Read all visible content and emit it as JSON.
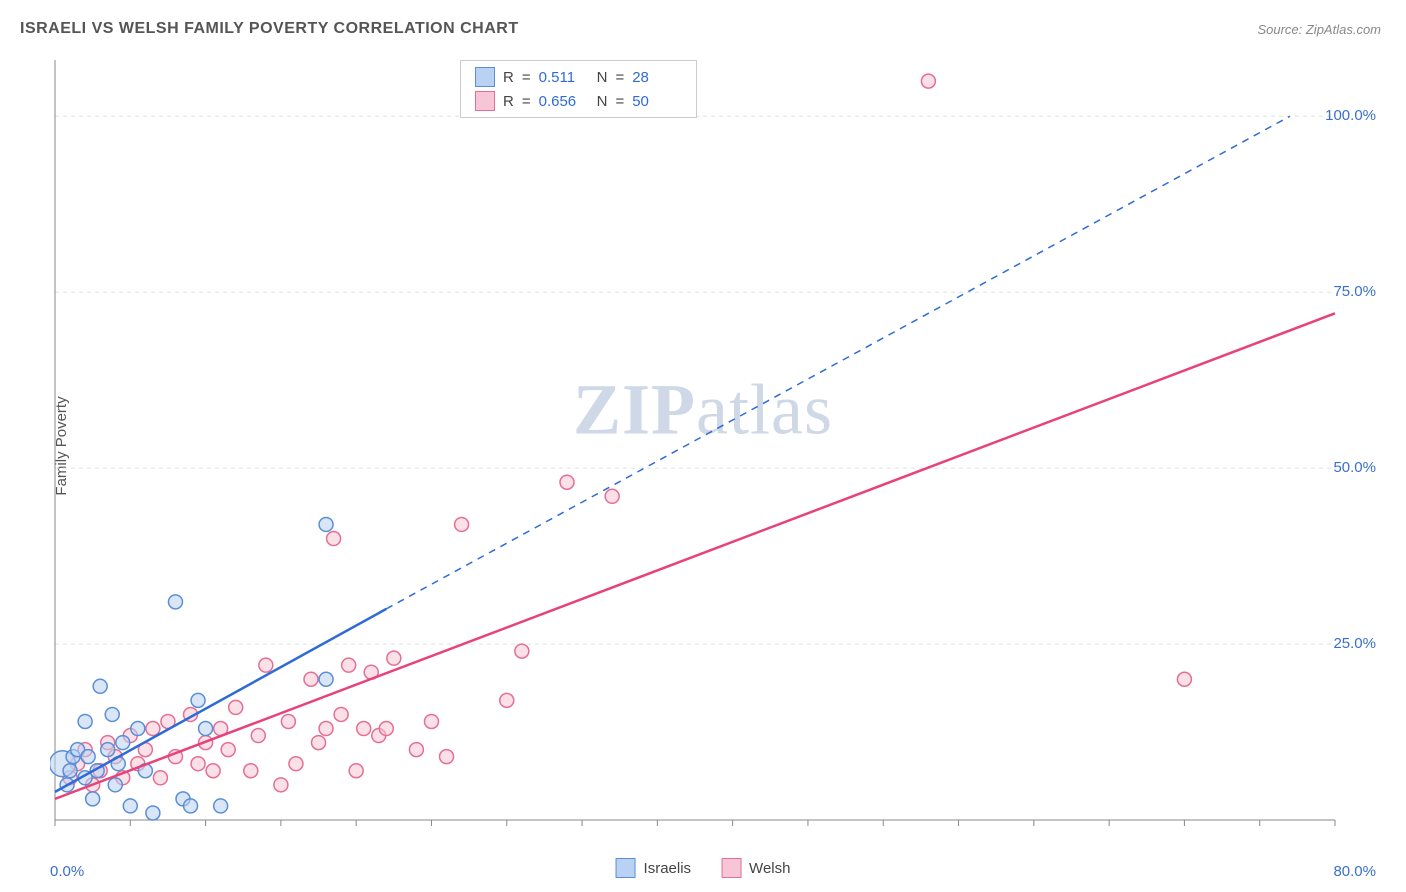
{
  "title": "ISRAELI VS WELSH FAMILY POVERTY CORRELATION CHART",
  "source": "Source: ZipAtlas.com",
  "ylabel": "Family Poverty",
  "watermark": {
    "bold": "ZIP",
    "rest": "atlas"
  },
  "chart": {
    "type": "scatter-with-regression",
    "background_color": "#ffffff",
    "grid_color": "#e0e0e0",
    "axis_color": "#888888",
    "tick_color": "#888888",
    "label_color": "#3b6fc9",
    "xlim": [
      0,
      85
    ],
    "ylim": [
      0,
      108
    ],
    "ytick_values": [
      25,
      50,
      75,
      100
    ],
    "ytick_labels": [
      "25.0%",
      "50.0%",
      "75.0%",
      "100.0%"
    ],
    "xtick_minor": [
      0,
      5,
      10,
      15,
      20,
      25,
      30,
      35,
      40,
      45,
      50,
      55,
      60,
      65,
      70,
      75,
      80,
      85
    ],
    "x_origin_label": "0.0%",
    "x_max_label": "80.0%",
    "marker_radius": 7,
    "marker_stroke_width": 1.5,
    "line_width": 2.5,
    "series": {
      "israelis": {
        "label": "Israelis",
        "fill": "#b9d2f3",
        "stroke": "#5a8fd6",
        "line_color": "#2f6bd6",
        "R": "0.511",
        "N": "28",
        "reg_solid": {
          "x1": 0,
          "y1": 4,
          "x2": 22,
          "y2": 30
        },
        "reg_dashed": {
          "x1": 22,
          "y1": 30,
          "x2": 82,
          "y2": 100
        },
        "points": [
          {
            "x": 0.5,
            "y": 8,
            "r": 13
          },
          {
            "x": 0.8,
            "y": 5
          },
          {
            "x": 1,
            "y": 7
          },
          {
            "x": 1.2,
            "y": 9
          },
          {
            "x": 1.5,
            "y": 10
          },
          {
            "x": 2,
            "y": 6
          },
          {
            "x": 2,
            "y": 14
          },
          {
            "x": 2.2,
            "y": 9
          },
          {
            "x": 2.5,
            "y": 3
          },
          {
            "x": 2.8,
            "y": 7
          },
          {
            "x": 3,
            "y": 19
          },
          {
            "x": 3.5,
            "y": 10
          },
          {
            "x": 3.8,
            "y": 15
          },
          {
            "x": 4,
            "y": 5
          },
          {
            "x": 4.2,
            "y": 8
          },
          {
            "x": 4.5,
            "y": 11
          },
          {
            "x": 5,
            "y": 2
          },
          {
            "x": 5.5,
            "y": 13
          },
          {
            "x": 6,
            "y": 7
          },
          {
            "x": 6.5,
            "y": 1
          },
          {
            "x": 8,
            "y": 31
          },
          {
            "x": 8.5,
            "y": 3
          },
          {
            "x": 9,
            "y": 2
          },
          {
            "x": 9.5,
            "y": 17
          },
          {
            "x": 10,
            "y": 13
          },
          {
            "x": 11,
            "y": 2
          },
          {
            "x": 18,
            "y": 42
          },
          {
            "x": 18,
            "y": 20
          }
        ]
      },
      "welsh": {
        "label": "Welsh",
        "fill": "#f7c6d6",
        "stroke": "#e46f94",
        "line_color": "#e8427a",
        "R": "0.656",
        "N": "50",
        "reg_solid": {
          "x1": 0,
          "y1": 3,
          "x2": 85,
          "y2": 72
        },
        "points": [
          {
            "x": 1,
            "y": 6
          },
          {
            "x": 1.5,
            "y": 8
          },
          {
            "x": 2,
            "y": 10
          },
          {
            "x": 2.5,
            "y": 5
          },
          {
            "x": 3,
            "y": 7
          },
          {
            "x": 3.5,
            "y": 11
          },
          {
            "x": 4,
            "y": 9
          },
          {
            "x": 4.5,
            "y": 6
          },
          {
            "x": 5,
            "y": 12
          },
          {
            "x": 5.5,
            "y": 8
          },
          {
            "x": 6,
            "y": 10
          },
          {
            "x": 6.5,
            "y": 13
          },
          {
            "x": 7,
            "y": 6
          },
          {
            "x": 7.5,
            "y": 14
          },
          {
            "x": 8,
            "y": 9
          },
          {
            "x": 9,
            "y": 15
          },
          {
            "x": 9.5,
            "y": 8
          },
          {
            "x": 10,
            "y": 11
          },
          {
            "x": 10.5,
            "y": 7
          },
          {
            "x": 11,
            "y": 13
          },
          {
            "x": 11.5,
            "y": 10
          },
          {
            "x": 12,
            "y": 16
          },
          {
            "x": 13,
            "y": 7
          },
          {
            "x": 13.5,
            "y": 12
          },
          {
            "x": 14,
            "y": 22
          },
          {
            "x": 15,
            "y": 5
          },
          {
            "x": 15.5,
            "y": 14
          },
          {
            "x": 16,
            "y": 8
          },
          {
            "x": 17,
            "y": 20
          },
          {
            "x": 17.5,
            "y": 11
          },
          {
            "x": 18,
            "y": 13
          },
          {
            "x": 18.5,
            "y": 40
          },
          {
            "x": 19,
            "y": 15
          },
          {
            "x": 19.5,
            "y": 22
          },
          {
            "x": 20,
            "y": 7
          },
          {
            "x": 20.5,
            "y": 13
          },
          {
            "x": 21,
            "y": 21
          },
          {
            "x": 21.5,
            "y": 12
          },
          {
            "x": 22,
            "y": 13
          },
          {
            "x": 22.5,
            "y": 23
          },
          {
            "x": 24,
            "y": 10
          },
          {
            "x": 25,
            "y": 14
          },
          {
            "x": 26,
            "y": 9
          },
          {
            "x": 27,
            "y": 42
          },
          {
            "x": 30,
            "y": 17
          },
          {
            "x": 31,
            "y": 24
          },
          {
            "x": 34,
            "y": 48
          },
          {
            "x": 37,
            "y": 46
          },
          {
            "x": 58,
            "y": 105
          },
          {
            "x": 75,
            "y": 20
          }
        ]
      }
    },
    "legend_top": {
      "r_label": "R",
      "n_label": "N",
      "eq": "="
    }
  }
}
